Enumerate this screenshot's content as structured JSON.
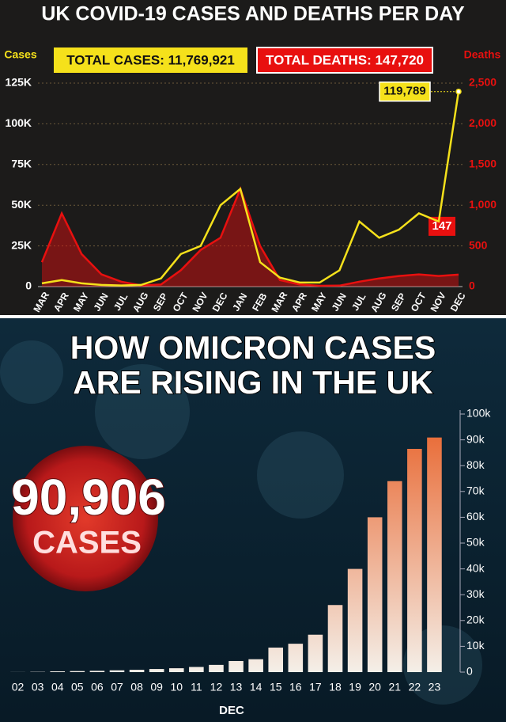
{
  "chart_data": [
    {
      "type": "line",
      "title": "UK COVID-19 CASES AND DEATHS PER DAY",
      "ylabel": "Cases",
      "y2label": "Deaths",
      "categories": [
        "MAR",
        "APR",
        "MAY",
        "JUN",
        "JUL",
        "AUG",
        "SEP",
        "OCT",
        "NOV",
        "DEC",
        "JAN",
        "FEB",
        "MAR",
        "APR",
        "MAY",
        "JUN",
        "JUL",
        "AUG",
        "SEP",
        "OCT",
        "NOV",
        "DEC"
      ],
      "series": [
        {
          "name": "TOTAL CASES: 11,769,921",
          "color": "#f5e11b",
          "values": [
            2000,
            4000,
            2000,
            1000,
            700,
            1000,
            5000,
            20000,
            25000,
            50000,
            60000,
            15000,
            5500,
            2500,
            2500,
            10000,
            40000,
            30000,
            35000,
            45000,
            40000,
            119789
          ],
          "value_labels": [
            null,
            null,
            null,
            null,
            null,
            null,
            null,
            null,
            null,
            null,
            null,
            null,
            null,
            null,
            null,
            null,
            null,
            null,
            null,
            null,
            null,
            "119,789"
          ]
        },
        {
          "name": "TOTAL DEATHS: 147,720",
          "color": "#e8100f",
          "axis": "y2",
          "values": [
            300,
            900,
            400,
            150,
            60,
            15,
            25,
            200,
            450,
            600,
            1200,
            500,
            80,
            25,
            10,
            12,
            60,
            100,
            130,
            150,
            130,
            147
          ],
          "value_labels": [
            null,
            null,
            null,
            null,
            null,
            null,
            null,
            null,
            null,
            null,
            null,
            null,
            null,
            null,
            null,
            null,
            null,
            null,
            null,
            null,
            null,
            "147"
          ]
        }
      ],
      "ylim": [
        0,
        125000
      ],
      "yticks": [
        0,
        {
          "value": 25000,
          "label": "25K"
        },
        {
          "value": 50000,
          "label": "50K"
        },
        {
          "value": 75000,
          "label": "75K"
        },
        {
          "value": 100000,
          "label": "100K"
        },
        {
          "value": 125000,
          "label": "125K"
        }
      ],
      "y2lim": [
        0,
        2500
      ],
      "y2ticks": [
        0,
        500,
        {
          "value": 1000,
          "label": "1,000"
        },
        {
          "value": 1500,
          "label": "1,500"
        },
        {
          "value": 2000,
          "label": "2,000"
        },
        {
          "value": 2500,
          "label": "2,500"
        }
      ],
      "grid": true
    },
    {
      "type": "bar",
      "title": [
        "HOW OMICRON CASES",
        "ARE RISING IN THE UK"
      ],
      "xlabel": "DEC",
      "categories": [
        "02",
        "03",
        "04",
        "05",
        "06",
        "07",
        "08",
        "09",
        "10",
        "11",
        "12",
        "13",
        "14",
        "15",
        "16",
        "17",
        "18",
        "19",
        "20",
        "21",
        "22",
        "23"
      ],
      "values": [
        30,
        100,
        300,
        400,
        500,
        700,
        900,
        1200,
        1500,
        2000,
        2800,
        4300,
        5000,
        9500,
        11000,
        14500,
        26000,
        40000,
        60000,
        74000,
        86500,
        90906
      ],
      "value_labels": [
        null,
        null,
        null,
        null,
        null,
        null,
        null,
        null,
        null,
        null,
        null,
        null,
        null,
        null,
        null,
        null,
        null,
        null,
        null,
        null,
        null,
        "90,906"
      ],
      "callout_unit": "CASES",
      "color": "#e8622a",
      "ylim": [
        0,
        100000
      ],
      "yticks": [
        0,
        {
          "value": 10000,
          "label": "10k"
        },
        {
          "value": 20000,
          "label": "20k"
        },
        {
          "value": 30000,
          "label": "30k"
        },
        {
          "value": 40000,
          "label": "40k"
        },
        {
          "value": 50000,
          "label": "50k"
        },
        {
          "value": 60000,
          "label": "60k"
        },
        {
          "value": 70000,
          "label": "70k"
        },
        {
          "value": 80000,
          "label": "80k"
        },
        {
          "value": 90000,
          "label": "90k"
        },
        {
          "value": 100000,
          "label": "100k"
        }
      ],
      "grid": false
    }
  ]
}
